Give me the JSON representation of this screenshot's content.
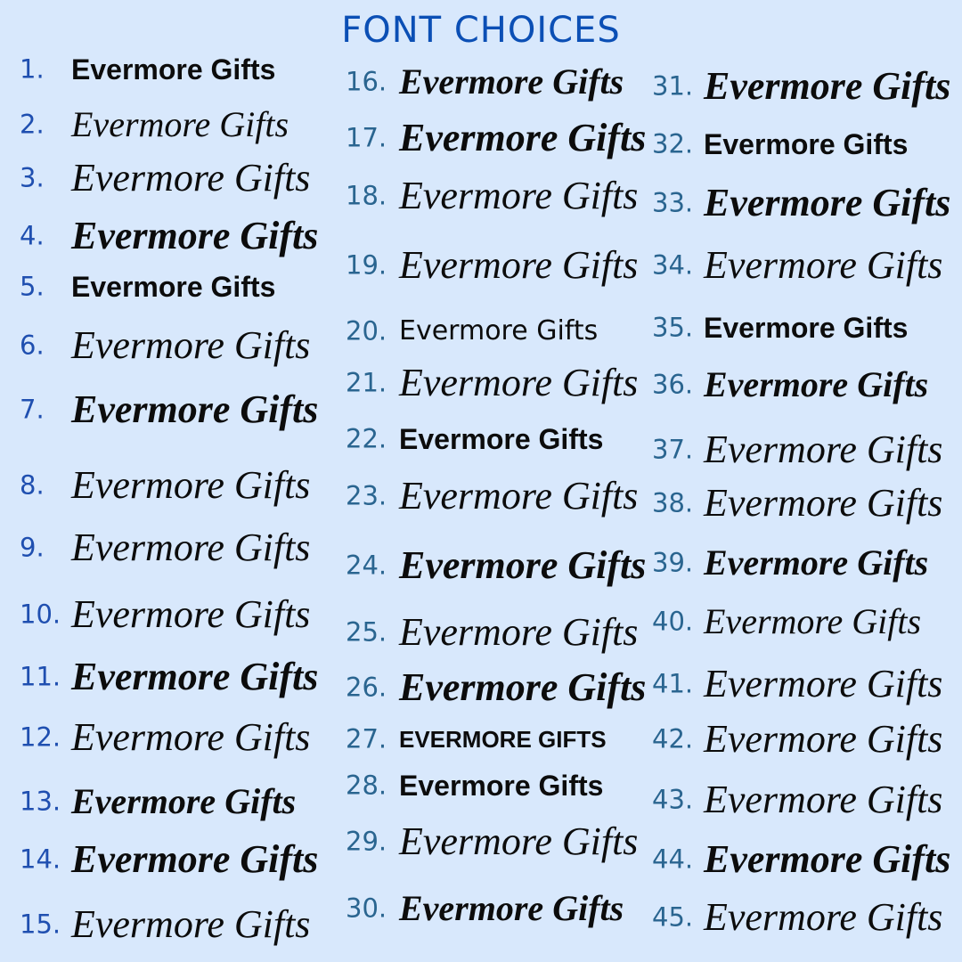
{
  "title": "FONT CHOICES",
  "colors": {
    "background": "#d8e8fc",
    "title": "#0b4fb5",
    "numbers_col1": "#1f4fb0",
    "numbers_col2_3": "#2a6590",
    "sample_text": "#0c0c0c"
  },
  "items": [
    {
      "number": "1.",
      "text": "Evermore Gifts"
    },
    {
      "number": "2.",
      "text": "Evermore Gifts"
    },
    {
      "number": "3.",
      "text": "Evermore Gifts"
    },
    {
      "number": "4.",
      "text": "Evermore Gifts"
    },
    {
      "number": "5.",
      "text": "Evermore Gifts"
    },
    {
      "number": "6.",
      "text": "Evermore Gifts"
    },
    {
      "number": "7.",
      "text": "Evermore Gifts"
    },
    {
      "number": "8.",
      "text": "Evermore Gifts"
    },
    {
      "number": "9.",
      "text": "Evermore Gifts"
    },
    {
      "number": "10.",
      "text": "Evermore Gifts"
    },
    {
      "number": "11.",
      "text": "Evermore Gifts"
    },
    {
      "number": "12.",
      "text": "Evermore Gifts"
    },
    {
      "number": "13.",
      "text": "Evermore Gifts"
    },
    {
      "number": "14.",
      "text": "Evermore Gifts"
    },
    {
      "number": "15.",
      "text": "Evermore Gifts"
    },
    {
      "number": "16.",
      "text": "Evermore Gifts"
    },
    {
      "number": "17.",
      "text": "Evermore Gifts"
    },
    {
      "number": "18.",
      "text": "Evermore Gifts"
    },
    {
      "number": "19.",
      "text": "Evermore Gifts"
    },
    {
      "number": "20.",
      "text": "Evermore Gifts"
    },
    {
      "number": "21.",
      "text": "Evermore Gifts"
    },
    {
      "number": "22.",
      "text": "Evermore Gifts"
    },
    {
      "number": "23.",
      "text": "Evermore Gifts"
    },
    {
      "number": "24.",
      "text": "Evermore Gifts"
    },
    {
      "number": "25.",
      "text": "Evermore Gifts"
    },
    {
      "number": "26.",
      "text": "Evermore Gifts"
    },
    {
      "number": "27.",
      "text": "EVERMORE GIFTS"
    },
    {
      "number": "28.",
      "text": "Evermore Gifts"
    },
    {
      "number": "29.",
      "text": "Evermore Gifts"
    },
    {
      "number": "30.",
      "text": "Evermore Gifts"
    },
    {
      "number": "31.",
      "text": "Evermore Gifts"
    },
    {
      "number": "32.",
      "text": "Evermore Gifts"
    },
    {
      "number": "33.",
      "text": "Evermore Gifts"
    },
    {
      "number": "34.",
      "text": "Evermore Gifts"
    },
    {
      "number": "35.",
      "text": "Evermore Gifts"
    },
    {
      "number": "36.",
      "text": "Evermore Gifts"
    },
    {
      "number": "37.",
      "text": "Evermore Gifts"
    },
    {
      "number": "38.",
      "text": "Evermore Gifts"
    },
    {
      "number": "39.",
      "text": "Evermore Gifts"
    },
    {
      "number": "40.",
      "text": "Evermore Gifts"
    },
    {
      "number": "41.",
      "text": "Evermore Gifts"
    },
    {
      "number": "42.",
      "text": "Evermore Gifts"
    },
    {
      "number": "43.",
      "text": "Evermore Gifts"
    },
    {
      "number": "44.",
      "text": "Evermore Gifts"
    },
    {
      "number": "45.",
      "text": "Evermore Gifts"
    }
  ]
}
